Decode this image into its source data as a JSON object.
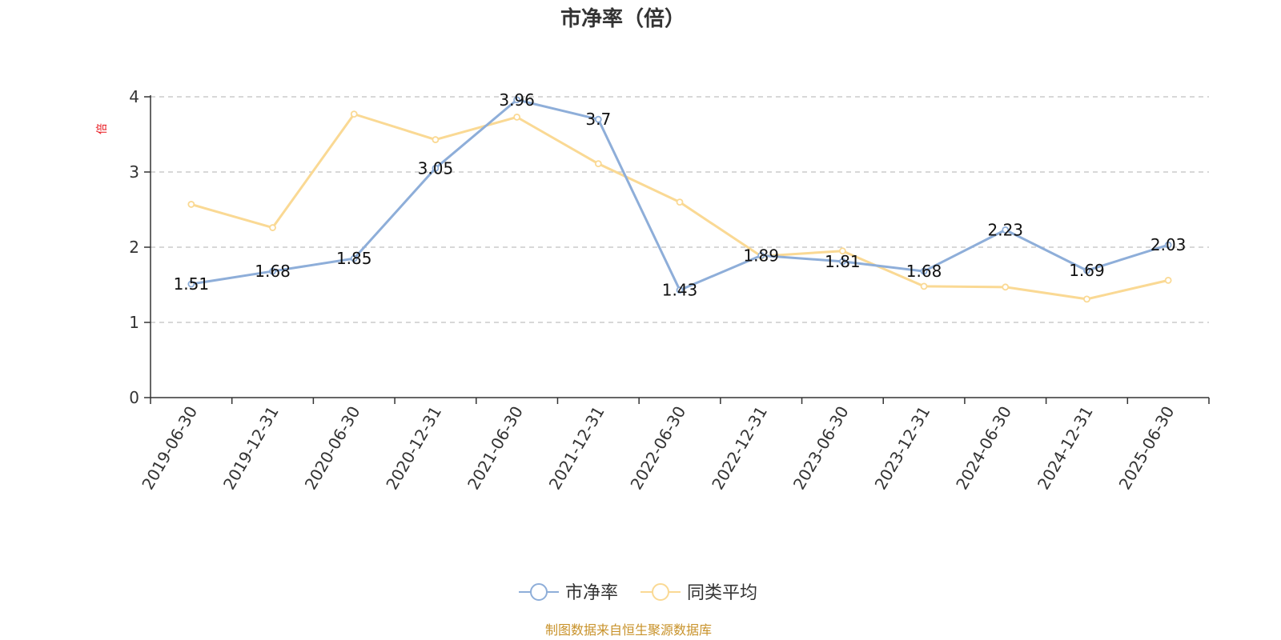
{
  "chart_data": {
    "type": "line",
    "title": "市净率（倍）",
    "ylabel": "倍",
    "xlabel": "",
    "ylim": [
      0,
      4
    ],
    "yticks": [
      "0",
      "1",
      "2",
      "3",
      "4"
    ],
    "grid": true,
    "legend_position": "bottom-center",
    "categories": [
      "2019-06-30",
      "2019-12-31",
      "2020-06-30",
      "2020-12-31",
      "2021-06-30",
      "2021-12-31",
      "2022-06-30",
      "2022-12-31",
      "2023-06-30",
      "2023-12-31",
      "2024-06-30",
      "2024-12-31",
      "2025-06-30"
    ],
    "series": [
      {
        "name": "市净率",
        "color": "#8eaed9",
        "values": [
          1.51,
          1.68,
          1.85,
          3.05,
          3.96,
          3.7,
          1.43,
          1.89,
          1.81,
          1.68,
          2.23,
          1.69,
          2.03
        ],
        "labels": [
          "1.51",
          "1.68",
          "1.85",
          "3.05",
          "3.96",
          "3.7",
          "1.43",
          "1.89",
          "1.81",
          "1.68",
          "2.23",
          "1.69",
          "2.03"
        ]
      },
      {
        "name": "同类平均",
        "color": "#fad994",
        "values": [
          2.57,
          2.26,
          3.77,
          3.43,
          3.73,
          3.11,
          2.6,
          1.88,
          1.95,
          1.48,
          1.47,
          1.31,
          1.56
        ]
      }
    ],
    "source": "制图数据来自恒生聚源数据库"
  }
}
